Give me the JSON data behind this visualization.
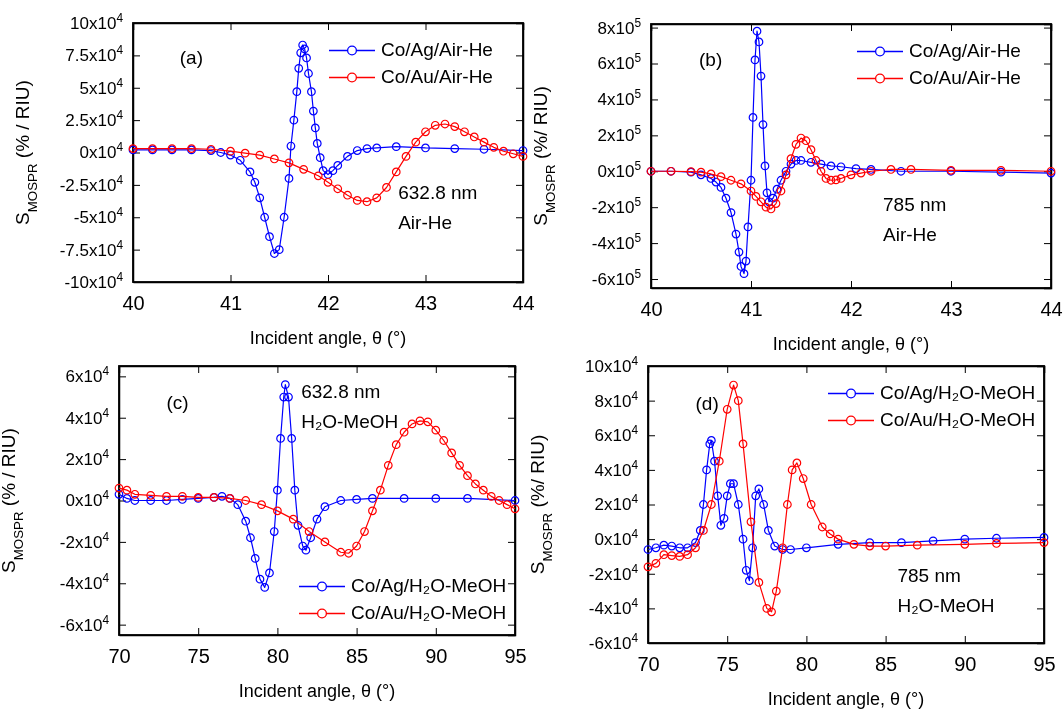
{
  "chart_data": [
    {
      "type": "line",
      "xlabel": "Incident angle, θ (°)",
      "ylabel": "S$_{MOSPR}$ (% / RIU)",
      "annotations": [
        "(a)",
        "632.8 nm",
        "Air-He"
      ],
      "xlim": [
        40,
        44
      ],
      "xticks": [
        40,
        41,
        42,
        43,
        44
      ],
      "ylim": [
        -100000,
        100000
      ],
      "yticks": [
        {
          "value": 100000,
          "label": "10x10$^{4}$"
        },
        {
          "value": 75000,
          "label": "7.5x10$^{4}$"
        },
        {
          "value": 50000,
          "label": "5x10$^{4}$"
        },
        {
          "value": 25000,
          "label": "2.5x10$^{4}$"
        },
        {
          "value": 0,
          "label": "0x10$^{4}$"
        },
        {
          "value": -25000,
          "label": "-2.5x10$^{4}$"
        },
        {
          "value": -50000,
          "label": "-5x10$^{4}$"
        },
        {
          "value": -75000,
          "label": "-7.5x10$^{4}$"
        },
        {
          "value": -100000,
          "label": "-10x10$^{4}$"
        }
      ],
      "legend": "top right",
      "marker": "circle",
      "line_style": "solid",
      "grid": false,
      "series": [
        {
          "name": "Co/Ag/Air-He",
          "color": "#0000ff",
          "x": [
            40,
            40.2,
            40.4,
            40.6,
            40.8,
            40.9,
            41,
            41.1,
            41.2,
            41.25,
            41.3,
            41.35,
            41.4,
            41.45,
            41.5,
            41.55,
            41.6,
            41.62,
            41.65,
            41.68,
            41.7,
            41.72,
            41.74,
            41.76,
            41.78,
            41.8,
            41.83,
            41.85,
            41.87,
            41.89,
            41.92,
            41.95,
            42,
            42.05,
            42.1,
            42.2,
            42.3,
            42.4,
            42.5,
            42.7,
            43,
            43.3,
            43.6,
            44
          ],
          "values": [
            2000,
            2000,
            2000,
            2000,
            1500,
            0,
            -2000,
            -6000,
            -15000,
            -23000,
            -35000,
            -50000,
            -65000,
            -78000,
            -75000,
            -50000,
            -20000,
            5000,
            25000,
            47000,
            65000,
            77000,
            83000,
            80000,
            73000,
            61000,
            47000,
            32000,
            19000,
            7000,
            -4000,
            -14000,
            -17000,
            -14000,
            -10000,
            -3000,
            1500,
            3000,
            3500,
            4500,
            3500,
            3000,
            2500,
            1500
          ]
        },
        {
          "name": "Co/Au/Air-He",
          "color": "#ff0000",
          "x": [
            40,
            40.2,
            40.4,
            40.6,
            40.8,
            41,
            41.15,
            41.3,
            41.45,
            41.6,
            41.75,
            41.9,
            42,
            42.1,
            42.2,
            42.3,
            42.4,
            42.5,
            42.6,
            42.7,
            42.8,
            42.9,
            43,
            43.1,
            43.2,
            43.3,
            43.4,
            43.5,
            43.6,
            43.7,
            43.8,
            43.9,
            44
          ],
          "values": [
            3000,
            3000,
            3000,
            3000,
            2500,
            1000,
            -500,
            -2000,
            -5000,
            -8000,
            -13000,
            -18000,
            -23000,
            -28000,
            -33000,
            -37000,
            -38000,
            -35000,
            -27000,
            -15000,
            -3000,
            8000,
            16000,
            21000,
            22000,
            20000,
            16000,
            12000,
            8000,
            4000,
            1000,
            -1000,
            -3000
          ]
        }
      ]
    },
    {
      "type": "line",
      "xlabel": "Incident angle, θ (°)",
      "ylabel": "S$_{MOSPR}$ (%/ RIU)",
      "annotations": [
        "(b)",
        "785 nm",
        "Air-He"
      ],
      "xlim": [
        40,
        44
      ],
      "xticks": [
        40,
        41,
        42,
        43,
        44
      ],
      "ylim": [
        -650000,
        820000
      ],
      "yticks": [
        {
          "value": 800000,
          "label": "8x10$^{5}$"
        },
        {
          "value": 600000,
          "label": "6x10$^{5}$"
        },
        {
          "value": 400000,
          "label": "4x10$^{5}$"
        },
        {
          "value": 200000,
          "label": "2x10$^{5}$"
        },
        {
          "value": 0,
          "label": "0x10$^{5}$"
        },
        {
          "value": -200000,
          "label": "-2x10$^{5}$"
        },
        {
          "value": -400000,
          "label": "-4x10$^{5}$"
        },
        {
          "value": -600000,
          "label": "-6x10$^{5}$"
        }
      ],
      "legend": "top right",
      "marker": "circle",
      "line_style": "solid",
      "grid": false,
      "series": [
        {
          "name": "Co/Ag/Air-He",
          "color": "#0000ff",
          "x": [
            40,
            40.2,
            40.4,
            40.5,
            40.6,
            40.65,
            40.7,
            40.75,
            40.8,
            40.85,
            40.88,
            40.9,
            40.93,
            40.95,
            40.97,
            41,
            41.02,
            41.04,
            41.06,
            41.08,
            41.1,
            41.12,
            41.14,
            41.16,
            41.18,
            41.22,
            41.26,
            41.3,
            41.35,
            41.4,
            41.45,
            41.5,
            41.6,
            41.7,
            41.8,
            41.9,
            42.05,
            42.2,
            42.5,
            43,
            43.5,
            44
          ],
          "values": [
            0,
            0,
            -5000,
            -20000,
            -40000,
            -60000,
            -90000,
            -150000,
            -230000,
            -350000,
            -450000,
            -530000,
            -570000,
            -500000,
            -310000,
            -50000,
            300000,
            620000,
            780000,
            720000,
            530000,
            260000,
            30000,
            -120000,
            -170000,
            -150000,
            -100000,
            -50000,
            0,
            40000,
            60000,
            60000,
            50000,
            40000,
            30000,
            25000,
            15000,
            10000,
            0,
            0,
            -5000,
            -10000
          ]
        },
        {
          "name": "Co/Au/Air-He",
          "color": "#ff0000",
          "x": [
            40,
            40.2,
            40.4,
            40.5,
            40.6,
            40.7,
            40.8,
            40.9,
            41,
            41.05,
            41.1,
            41.15,
            41.2,
            41.25,
            41.3,
            41.35,
            41.4,
            41.45,
            41.5,
            41.55,
            41.6,
            41.65,
            41.7,
            41.75,
            41.8,
            41.85,
            41.9,
            42,
            42.1,
            42.2,
            42.4,
            42.6,
            43,
            43.5,
            44
          ],
          "values": [
            0,
            0,
            -2000,
            -5000,
            -15000,
            -30000,
            -50000,
            -70000,
            -110000,
            -140000,
            -170000,
            -200000,
            -210000,
            -180000,
            -110000,
            -20000,
            70000,
            150000,
            185000,
            170000,
            120000,
            60000,
            0,
            -40000,
            -50000,
            -48000,
            -40000,
            -20000,
            -10000,
            0,
            10000,
            10000,
            5000,
            5000,
            0
          ]
        }
      ]
    },
    {
      "type": "line",
      "xlabel": "Incident angle, θ (°)",
      "ylabel": "S$_{MOSPR}$ (% / RIU)",
      "annotations": [
        "(c)",
        "632.8 nm",
        "H₂O-MeOH"
      ],
      "xlim": [
        70,
        95
      ],
      "xticks": [
        70,
        75,
        80,
        85,
        90,
        95
      ],
      "ylim": [
        -65000,
        65000
      ],
      "yticks": [
        {
          "value": 60000,
          "label": "6x10$^{4}$"
        },
        {
          "value": 40000,
          "label": "4x10$^{4}$"
        },
        {
          "value": 20000,
          "label": "2x10$^{4}$"
        },
        {
          "value": 0,
          "label": "0x10$^{4}$"
        },
        {
          "value": -20000,
          "label": "-2x10$^{4}$"
        },
        {
          "value": -40000,
          "label": "-4x10$^{4}$"
        },
        {
          "value": -60000,
          "label": "-6x10$^{4}$"
        }
      ],
      "legend": "bottom right",
      "marker": "circle",
      "line_style": "solid",
      "grid": false,
      "series": [
        {
          "name": "Co/Ag/H₂O-MeOH",
          "color": "#0000ff",
          "x": [
            70,
            70.5,
            71,
            72,
            73,
            74,
            75,
            76,
            76.5,
            77,
            77.5,
            78,
            78.3,
            78.6,
            78.9,
            79.2,
            79.5,
            79.8,
            80,
            80.2,
            80.4,
            80.5,
            80.7,
            80.9,
            81.1,
            81.3,
            81.6,
            81.8,
            82.1,
            82.5,
            83,
            84,
            85,
            86,
            88,
            90,
            92,
            95
          ],
          "values": [
            3000,
            1000,
            0,
            0,
            0,
            500,
            1000,
            1500,
            2000,
            1000,
            -2000,
            -10000,
            -18000,
            -28000,
            -38000,
            -42000,
            -35000,
            -15000,
            5000,
            30000,
            50000,
            56000,
            50000,
            30000,
            5000,
            -12000,
            -22000,
            -24000,
            -18000,
            -9000,
            -3000,
            0,
            500,
            1000,
            1000,
            1000,
            1000,
            0
          ]
        },
        {
          "name": "Co/Au/H₂O-MeOH",
          "color": "#ff0000",
          "x": [
            70,
            70.5,
            71,
            72,
            73,
            74,
            75,
            76,
            77,
            78,
            79,
            80,
            81,
            82,
            83,
            84,
            84.5,
            85,
            85.5,
            86,
            86.5,
            87,
            87.5,
            88,
            88.5,
            89,
            89.5,
            90,
            90.5,
            91,
            91.5,
            92,
            92.5,
            93,
            93.5,
            94,
            94.5,
            95
          ],
          "values": [
            6000,
            5000,
            3000,
            2500,
            2000,
            2000,
            1500,
            1500,
            1000,
            0,
            -2000,
            -5000,
            -9000,
            -15000,
            -20000,
            -25000,
            -25500,
            -22000,
            -15000,
            -5000,
            5000,
            17000,
            27000,
            33000,
            37000,
            38500,
            38000,
            34000,
            29000,
            23000,
            17000,
            12000,
            8000,
            5000,
            2000,
            0,
            -2000,
            -4000
          ]
        }
      ]
    },
    {
      "type": "line",
      "xlabel": "Incident angle, θ (°)",
      "ylabel": "S$_{MOSPR}$ (%/ RIU)",
      "annotations": [
        "(d)",
        "785 nm",
        "H₂O-MeOH"
      ],
      "xlim": [
        70,
        95
      ],
      "xticks": [
        70,
        75,
        80,
        85,
        90,
        95
      ],
      "ylim": [
        -60000,
        100000
      ],
      "yticks": [
        {
          "value": 100000,
          "label": "10x10$^{4}$"
        },
        {
          "value": 80000,
          "label": "8x10$^{4}$"
        },
        {
          "value": 60000,
          "label": "6x10$^{4}$"
        },
        {
          "value": 40000,
          "label": "4x10$^{4}$"
        },
        {
          "value": 20000,
          "label": "2x10$^{4}$"
        },
        {
          "value": 0,
          "label": "0x10$^{4}$"
        },
        {
          "value": -20000,
          "label": "-2x10$^{4}$"
        },
        {
          "value": -40000,
          "label": "-4x10$^{4}$"
        },
        {
          "value": -60000,
          "label": "-6x10$^{4}$"
        }
      ],
      "legend": "top right",
      "marker": "circle",
      "line_style": "solid",
      "grid": false,
      "series": [
        {
          "name": "Co/Ag/H₂O-MeOH",
          "color": "#0000ff",
          "x": [
            70,
            70.5,
            71,
            71.5,
            72,
            72.5,
            73,
            73.3,
            73.5,
            73.7,
            73.9,
            74,
            74.2,
            74.4,
            74.6,
            74.8,
            75,
            75.2,
            75.4,
            75.7,
            76,
            76.2,
            76.4,
            76.6,
            76.8,
            77,
            77.3,
            77.6,
            78,
            78.5,
            79,
            80,
            82,
            84,
            86,
            88,
            90,
            92,
            95
          ],
          "values": [
            -6000,
            -5000,
            -3500,
            -4000,
            -5000,
            -5000,
            -2000,
            5000,
            20000,
            40000,
            55000,
            57000,
            45000,
            25000,
            8000,
            12000,
            25000,
            32000,
            32000,
            20000,
            0,
            -18000,
            -24000,
            -5000,
            25000,
            29000,
            20000,
            5000,
            -4000,
            -6000,
            -6000,
            -5000,
            -3000,
            -2000,
            -2000,
            -1000,
            0,
            500,
            1000
          ]
        },
        {
          "name": "Co/Au/H₂O-MeOH",
          "color": "#ff0000",
          "x": [
            70,
            70.5,
            71,
            71.5,
            72,
            72.5,
            73,
            73.5,
            74,
            74.5,
            75,
            75.4,
            75.7,
            76,
            76.5,
            77,
            77.5,
            77.8,
            78.1,
            78.5,
            78.8,
            79.1,
            79.4,
            79.8,
            80.3,
            81,
            81.5,
            82,
            83,
            84,
            85,
            87,
            90,
            92,
            95
          ],
          "values": [
            -16000,
            -14000,
            -9000,
            -9500,
            -10000,
            -9000,
            -5000,
            5000,
            20000,
            45000,
            75000,
            89000,
            80000,
            55000,
            10000,
            -25000,
            -40000,
            -42000,
            -30000,
            -5000,
            20000,
            40000,
            44000,
            35000,
            20000,
            7000,
            3000,
            0,
            -3000,
            -4000,
            -4000,
            -3500,
            -3000,
            -2500,
            -2000
          ]
        }
      ]
    }
  ]
}
